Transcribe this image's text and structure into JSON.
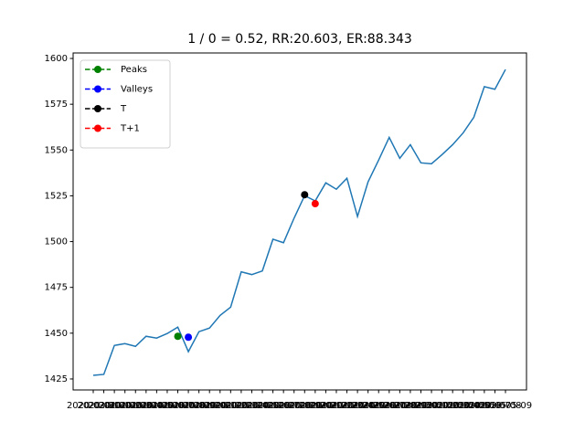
{
  "chart_data": {
    "type": "line",
    "title": "1 / 0 = 0.52, RR:20.603, ER:88.343",
    "categories": [
      "2020-03-31",
      "2020-04-01",
      "2020-04-02",
      "2020-04-03",
      "2020-04-04",
      "2020-04-05",
      "2020-04-06",
      "2020-04-07",
      "2020-04-08",
      "2020-04-09",
      "2020-04-10",
      "2020-04-11",
      "2020-04-12",
      "2020-04-13",
      "2020-04-14",
      "2020-04-15",
      "2020-04-16",
      "2020-04-17",
      "2020-04-18",
      "2020-04-19",
      "2020-04-20",
      "2020-04-21",
      "2020-04-22",
      "2020-04-23",
      "2020-04-24",
      "2020-04-25",
      "2020-04-26",
      "2020-04-27",
      "2020-04-28",
      "2020-04-29",
      "2020-04-30",
      "2020-05-01",
      "2020-05-02",
      "2020-05-03",
      "2020-05-04",
      "2020-05-05",
      "2020-05-06",
      "2020-05-07",
      "2020-05-08",
      "2020-05-09"
    ],
    "series": [
      {
        "color": "#1f77b4",
        "values": [
          1427,
          1427.5,
          1443.3,
          1444.3,
          1442.8,
          1448.3,
          1447.3,
          1449.8,
          1453.3,
          1439.9,
          1450.8,
          1452.8,
          1459.7,
          1464.2,
          1483.5,
          1482,
          1484,
          1501.3,
          1499.4,
          1512.8,
          1525.1,
          1522.2,
          1532.1,
          1528.6,
          1534.6,
          1513.7,
          1532.6,
          1544.5,
          1556.9,
          1545.5,
          1552.9,
          1543,
          1542.5,
          1547.5,
          1552.9,
          1559.4,
          1567.8,
          1584.6,
          1583.2,
          1594
        ]
      },
      {
        "name": "Peaks",
        "color": "#008000",
        "values": [
          null,
          null,
          null,
          null,
          null,
          null,
          null,
          null,
          1448.3,
          null,
          null,
          null,
          null,
          null,
          null,
          null,
          null,
          null,
          null,
          null,
          null,
          null,
          null,
          null,
          null,
          null,
          null,
          null,
          null,
          null,
          null,
          null,
          null,
          null,
          null,
          null,
          null,
          null,
          null,
          null
        ]
      },
      {
        "name": "Valleys",
        "color": "#0000ff",
        "values": [
          null,
          null,
          null,
          null,
          null,
          null,
          null,
          null,
          null,
          1447.8,
          null,
          null,
          null,
          null,
          null,
          null,
          null,
          null,
          null,
          null,
          null,
          null,
          null,
          null,
          null,
          null,
          null,
          null,
          null,
          null,
          null,
          null,
          null,
          null,
          null,
          null,
          null,
          null,
          null,
          null
        ]
      },
      {
        "name": "T",
        "color": "#000000",
        "values": [
          null,
          null,
          null,
          null,
          null,
          null,
          null,
          null,
          null,
          null,
          null,
          null,
          null,
          null,
          null,
          null,
          null,
          null,
          null,
          null,
          1525.6,
          null,
          null,
          null,
          null,
          null,
          null,
          null,
          null,
          null,
          null,
          null,
          null,
          null,
          null,
          null,
          null,
          null,
          null,
          null
        ]
      },
      {
        "name": "T+1",
        "color": "#ff0000",
        "values": [
          null,
          null,
          null,
          null,
          null,
          null,
          null,
          null,
          null,
          null,
          null,
          null,
          null,
          null,
          null,
          null,
          null,
          null,
          null,
          null,
          null,
          1520.7,
          null,
          null,
          null,
          null,
          null,
          null,
          null,
          null,
          null,
          null,
          null,
          null,
          null,
          null,
          null,
          null,
          null,
          null
        ]
      }
    ],
    "ylim": [
      1419,
      1603
    ],
    "yticks": [
      1425,
      1450,
      1475,
      1500,
      1525,
      1550,
      1575,
      1600
    ],
    "legend": "upper left"
  }
}
